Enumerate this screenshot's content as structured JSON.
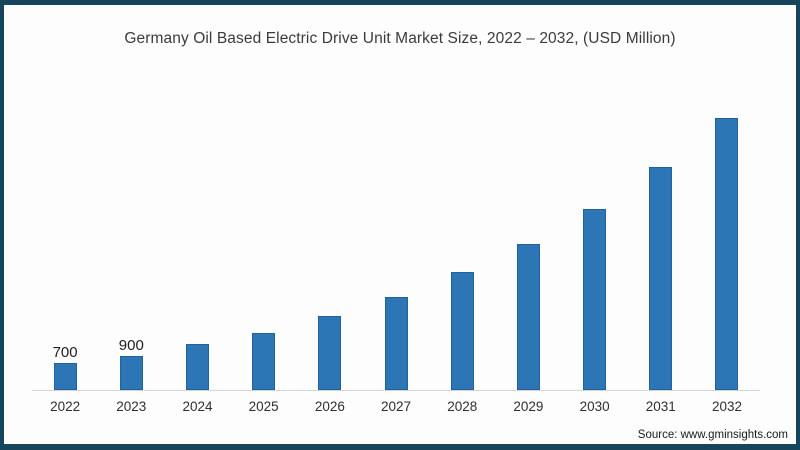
{
  "frame": {
    "border_color": "#17465c",
    "background": "#fdfdfd"
  },
  "chart_data": {
    "type": "bar",
    "title": "Germany Oil Based Electric Drive Unit Market Size, 2022 – 2032, (USD Million)",
    "categories": [
      "2022",
      "2023",
      "2024",
      "2025",
      "2026",
      "2027",
      "2028",
      "2029",
      "2030",
      "2031",
      "2032"
    ],
    "values": [
      700,
      900,
      1200,
      1500,
      1950,
      2450,
      3100,
      3850,
      4750,
      5850,
      7150
    ],
    "value_labels": [
      "700",
      "900",
      "",
      "",
      "",
      "",
      "",
      "",
      "",
      "",
      ""
    ],
    "bar_color": "#2d76b5",
    "axis_line_color": "#d4d4d4",
    "xlabel": "",
    "ylabel": "",
    "ylim": [
      0,
      7500
    ],
    "grid": false,
    "legend": false
  },
  "source": {
    "text": "Source: www.gminsights.com"
  }
}
